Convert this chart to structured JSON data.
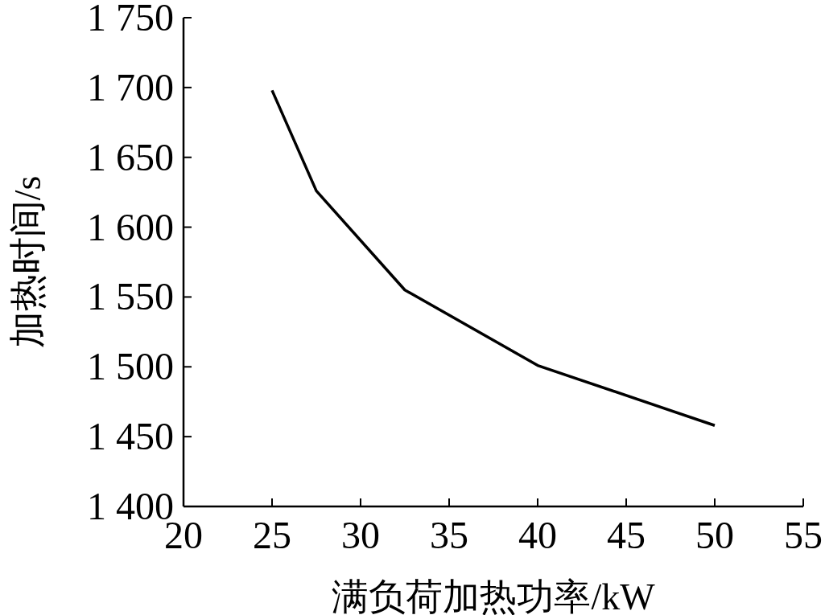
{
  "chart_data": {
    "type": "line",
    "xlabel": "满负荷加热功率/kW",
    "ylabel": "加热时间/s",
    "x": [
      25,
      27.5,
      32.5,
      40,
      50
    ],
    "series": [
      {
        "color": "#000000",
        "values": [
          1698,
          1626,
          1555,
          1501,
          1458
        ]
      }
    ],
    "xlim": [
      20,
      55
    ],
    "xticks": [
      20,
      25,
      30,
      35,
      40,
      45,
      50,
      55
    ],
    "ylim": [
      1400,
      1750
    ],
    "yticks": [
      {
        "value": 1400,
        "label": "1 400"
      },
      {
        "value": 1450,
        "label": "1 450"
      },
      {
        "value": 1500,
        "label": "1 500"
      },
      {
        "value": 1550,
        "label": "1 550"
      },
      {
        "value": 1600,
        "label": "1 600"
      },
      {
        "value": 1650,
        "label": "1 650"
      },
      {
        "value": 1700,
        "label": "1 700"
      },
      {
        "value": 1750,
        "label": "1 750"
      }
    ]
  }
}
